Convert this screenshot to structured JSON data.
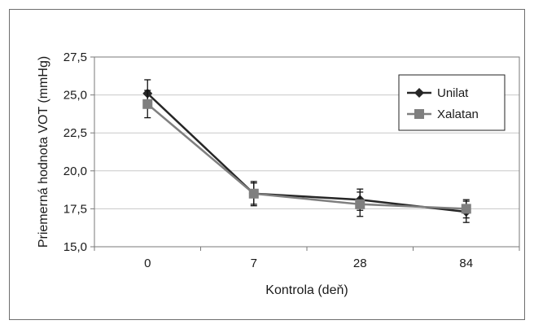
{
  "chart_data": {
    "type": "line",
    "xlabel": "Kontrola (deň)",
    "ylabel": "Priemerná hodnota VOT (mmHg)",
    "categories": [
      "0",
      "7",
      "28",
      "84"
    ],
    "ylim": [
      15.0,
      27.5
    ],
    "yticks": [
      "15,0",
      "17,5",
      "20,0",
      "22,5",
      "25,0",
      "27,5"
    ],
    "grid": true,
    "legend_position": "top-right",
    "series": [
      {
        "name": "Unilat",
        "marker": "diamond",
        "color": "#262626",
        "values": [
          25.1,
          18.5,
          18.1,
          17.3
        ],
        "error": [
          0.9,
          0.8,
          0.7,
          0.7
        ]
      },
      {
        "name": "Xalatan",
        "marker": "square",
        "color": "#7f7f7f",
        "values": [
          24.4,
          18.5,
          17.8,
          17.5
        ],
        "error": [
          0.9,
          0.7,
          0.8,
          0.6
        ]
      }
    ]
  }
}
